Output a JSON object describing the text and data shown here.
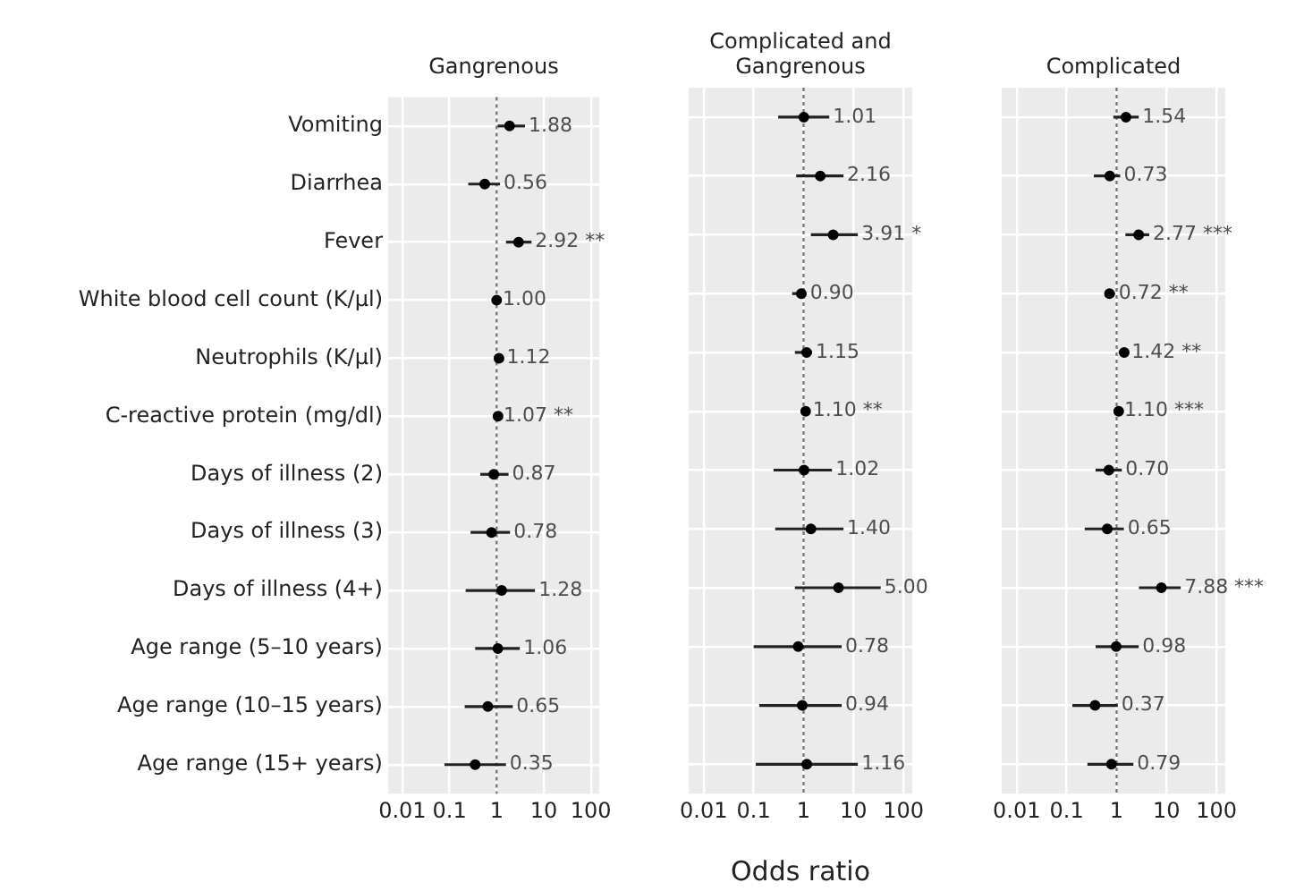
{
  "chart_data": [
    {
      "type": "scatter",
      "title": "Gangrenous",
      "orientation": "horizontal",
      "log": "x",
      "grid": true,
      "marker": "circle",
      "categories": [
        "Vomiting",
        "Diarrhea",
        "Fever",
        "White blood cell count (K/µl)",
        "Neutrophils (K/µl)",
        "C-reactive protein (mg/dl)",
        "Days of illness (2)",
        "Days of illness (3)",
        "Days of illness (4+)",
        "Age range (5–10 years)",
        "Age range (10–15 years)",
        "Age range (15+ years)"
      ],
      "values": [
        1.88,
        0.56,
        2.92,
        1.0,
        1.12,
        1.07,
        0.87,
        0.78,
        1.28,
        1.06,
        0.65,
        0.35
      ],
      "errors": [
        [
          1.05,
          4.0
        ],
        [
          0.25,
          1.18
        ],
        [
          1.58,
          5.5
        ],
        [
          0.82,
          1.13
        ],
        [
          1.0,
          1.37
        ],
        [
          1.0,
          1.18
        ],
        [
          0.45,
          1.79
        ],
        [
          0.28,
          1.92
        ],
        [
          0.22,
          6.5
        ],
        [
          0.35,
          3.1
        ],
        [
          0.21,
          2.2
        ],
        [
          0.078,
          1.58
        ]
      ],
      "value_labels": [
        "1.88",
        "0.56",
        "2.92 **",
        "1.00",
        "1.12",
        "1.07 **",
        "0.87",
        "0.78",
        "1.28",
        "1.06",
        "0.65",
        "0.35"
      ],
      "xlim": [
        0.005,
        150
      ],
      "xticks": [
        0.01,
        0.1,
        1,
        10,
        100
      ],
      "ref_lines": [
        {
          "axis": "x",
          "value": 1,
          "line_style": "dotted"
        }
      ]
    },
    {
      "type": "scatter",
      "title": "Complicated and Gangrenous",
      "xlabel": "Odds ratio",
      "orientation": "horizontal",
      "log": "x",
      "grid": true,
      "marker": "circle",
      "tick_labels": "x",
      "categories": [
        null,
        null,
        null,
        null,
        null,
        null,
        null,
        null,
        null,
        null,
        null,
        null
      ],
      "values": [
        1.01,
        2.16,
        3.91,
        0.9,
        1.15,
        1.1,
        1.02,
        1.4,
        5.0,
        0.78,
        0.94,
        1.16
      ],
      "errors": [
        [
          0.31,
          3.27
        ],
        [
          0.71,
          6.3
        ],
        [
          1.4,
          12.2
        ],
        [
          0.59,
          1.14
        ],
        [
          0.67,
          1.48
        ],
        [
          1.0,
          1.3
        ],
        [
          0.25,
          3.7
        ],
        [
          0.27,
          6.3
        ],
        [
          0.67,
          35
        ],
        [
          0.1,
          5.8
        ],
        [
          0.13,
          5.8
        ],
        [
          0.11,
          12.2
        ]
      ],
      "value_labels": [
        "1.01",
        "2.16",
        "3.91 *",
        "0.90",
        "1.15",
        "1.10 **",
        "1.02",
        "1.40",
        "5.00",
        "0.78",
        "0.94",
        "1.16"
      ],
      "xlim": [
        0.005,
        150
      ],
      "xticks": [
        0.01,
        0.1,
        1,
        10,
        100
      ],
      "ref_lines": [
        {
          "axis": "x",
          "value": 1,
          "line_style": "dotted"
        }
      ]
    },
    {
      "type": "scatter",
      "title": "Complicated",
      "orientation": "horizontal",
      "log": "x",
      "grid": true,
      "marker": "circle",
      "tick_labels": "x",
      "categories": [
        null,
        null,
        null,
        null,
        null,
        null,
        null,
        null,
        null,
        null,
        null,
        null
      ],
      "values": [
        1.54,
        0.73,
        2.77,
        0.72,
        1.42,
        1.1,
        0.7,
        0.65,
        7.88,
        0.98,
        0.37,
        0.79
      ],
      "errors": [
        [
          0.86,
          2.77
        ],
        [
          0.35,
          1.18
        ],
        [
          1.5,
          4.5
        ],
        [
          0.62,
          0.93
        ],
        [
          1.1,
          1.7
        ],
        [
          0.89,
          1.21
        ],
        [
          0.38,
          1.27
        ],
        [
          0.23,
          1.4
        ],
        [
          2.8,
          19.2
        ],
        [
          0.38,
          2.77
        ],
        [
          0.13,
          1.05
        ],
        [
          0.26,
          2.17
        ]
      ],
      "value_labels": [
        "1.54",
        "0.73",
        "2.77 ***",
        "0.72 **",
        "1.42 **",
        "1.10 ***",
        "0.70",
        "0.65",
        "7.88 ***",
        "0.98",
        "0.37",
        "0.79"
      ],
      "xlim": [
        0.005,
        150
      ],
      "xticks": [
        0.01,
        0.1,
        1,
        10,
        100
      ],
      "ref_lines": [
        {
          "axis": "x",
          "value": 1,
          "line_style": "dotted"
        }
      ]
    }
  ]
}
